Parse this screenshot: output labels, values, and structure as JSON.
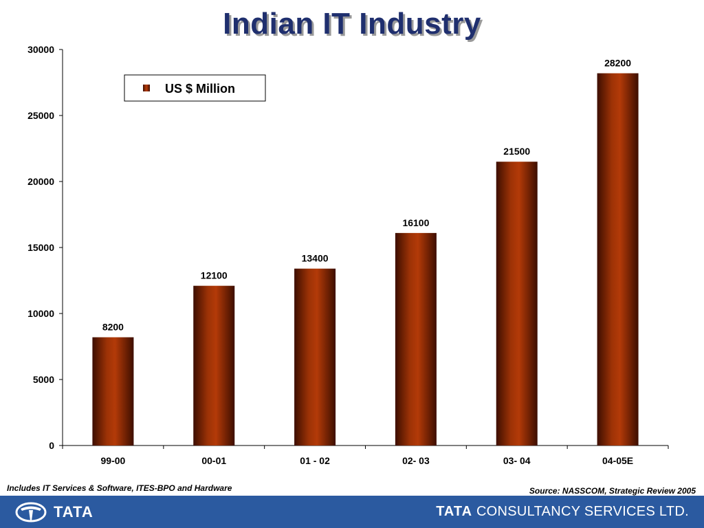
{
  "title": "Indian IT Industry",
  "note": "Includes IT Services & Software, ITES-BPO and Hardware",
  "source": "Source: NASSCOM, Strategic Review 2005",
  "footer": {
    "left_logo": "TATA",
    "right_logo_brand": "TATA",
    "right_logo_rest": "CONSULTANCY SERVICES LTD."
  },
  "chart_data": {
    "type": "bar",
    "title": "Indian IT Industry",
    "categories": [
      "99-00",
      "00-01",
      "01 - 02",
      "02- 03",
      "03- 04",
      "04-05E"
    ],
    "series": [
      {
        "name": "US $ Million",
        "values": [
          8200,
          12100,
          13400,
          16100,
          21500,
          28200
        ]
      }
    ],
    "data_labels": [
      "8200",
      "12100",
      "13400",
      "16100",
      "21500",
      "28200"
    ],
    "ylim": [
      0,
      30000
    ],
    "yticks": [
      0,
      5000,
      10000,
      15000,
      20000,
      25000,
      30000
    ],
    "xlabel": "",
    "ylabel": "",
    "grid": false,
    "legend": "top-left",
    "colors": {
      "bar_edge": "#3d0e00",
      "bar_center": "#b33a08",
      "axis": "#000000"
    }
  }
}
